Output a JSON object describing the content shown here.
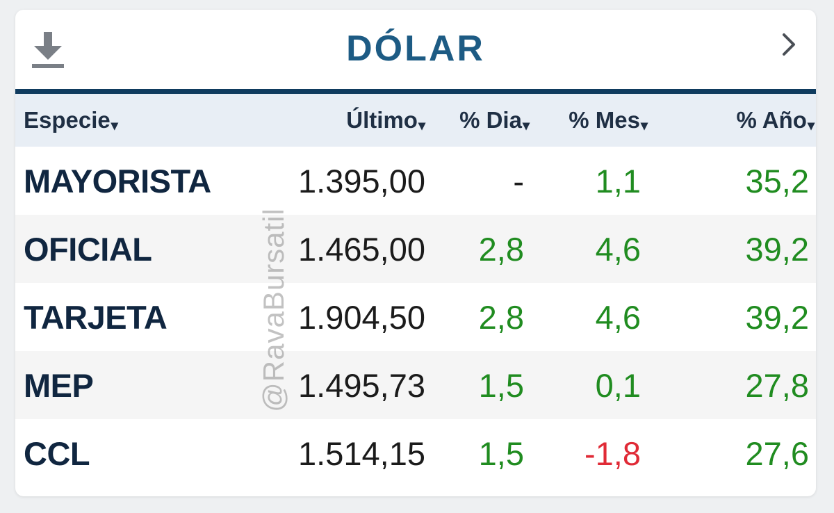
{
  "widget": {
    "title": "DÓLAR",
    "download_icon": "download-icon",
    "next_icon": "chevron-right-icon",
    "watermark": "@RavaBursatil",
    "colors": {
      "title": "#1d5b84",
      "header_rule": "#0f3b5f",
      "positive": "#208c20",
      "negative": "#e02a36"
    }
  },
  "table": {
    "sort_indicator": "▾",
    "columns": [
      {
        "key": "especie",
        "label": "Especie"
      },
      {
        "key": "ultimo",
        "label": "Último"
      },
      {
        "key": "dia",
        "label": "% Dia"
      },
      {
        "key": "mes",
        "label": "% Mes"
      },
      {
        "key": "ano",
        "label": "% Año"
      }
    ],
    "rows": [
      {
        "especie": "MAYORISTA",
        "ultimo": "1.395,00",
        "dia": "-",
        "mes": "1,1",
        "ano": "35,2"
      },
      {
        "especie": "OFICIAL",
        "ultimo": "1.465,00",
        "dia": "2,8",
        "mes": "4,6",
        "ano": "39,2"
      },
      {
        "especie": "TARJETA",
        "ultimo": "1.904,50",
        "dia": "2,8",
        "mes": "4,6",
        "ano": "39,2"
      },
      {
        "especie": "MEP",
        "ultimo": "1.495,73",
        "dia": "1,5",
        "mes": "0,1",
        "ano": "27,8"
      },
      {
        "especie": "CCL",
        "ultimo": "1.514,15",
        "dia": "1,5",
        "mes": "-1,8",
        "ano": "27,6"
      }
    ]
  }
}
